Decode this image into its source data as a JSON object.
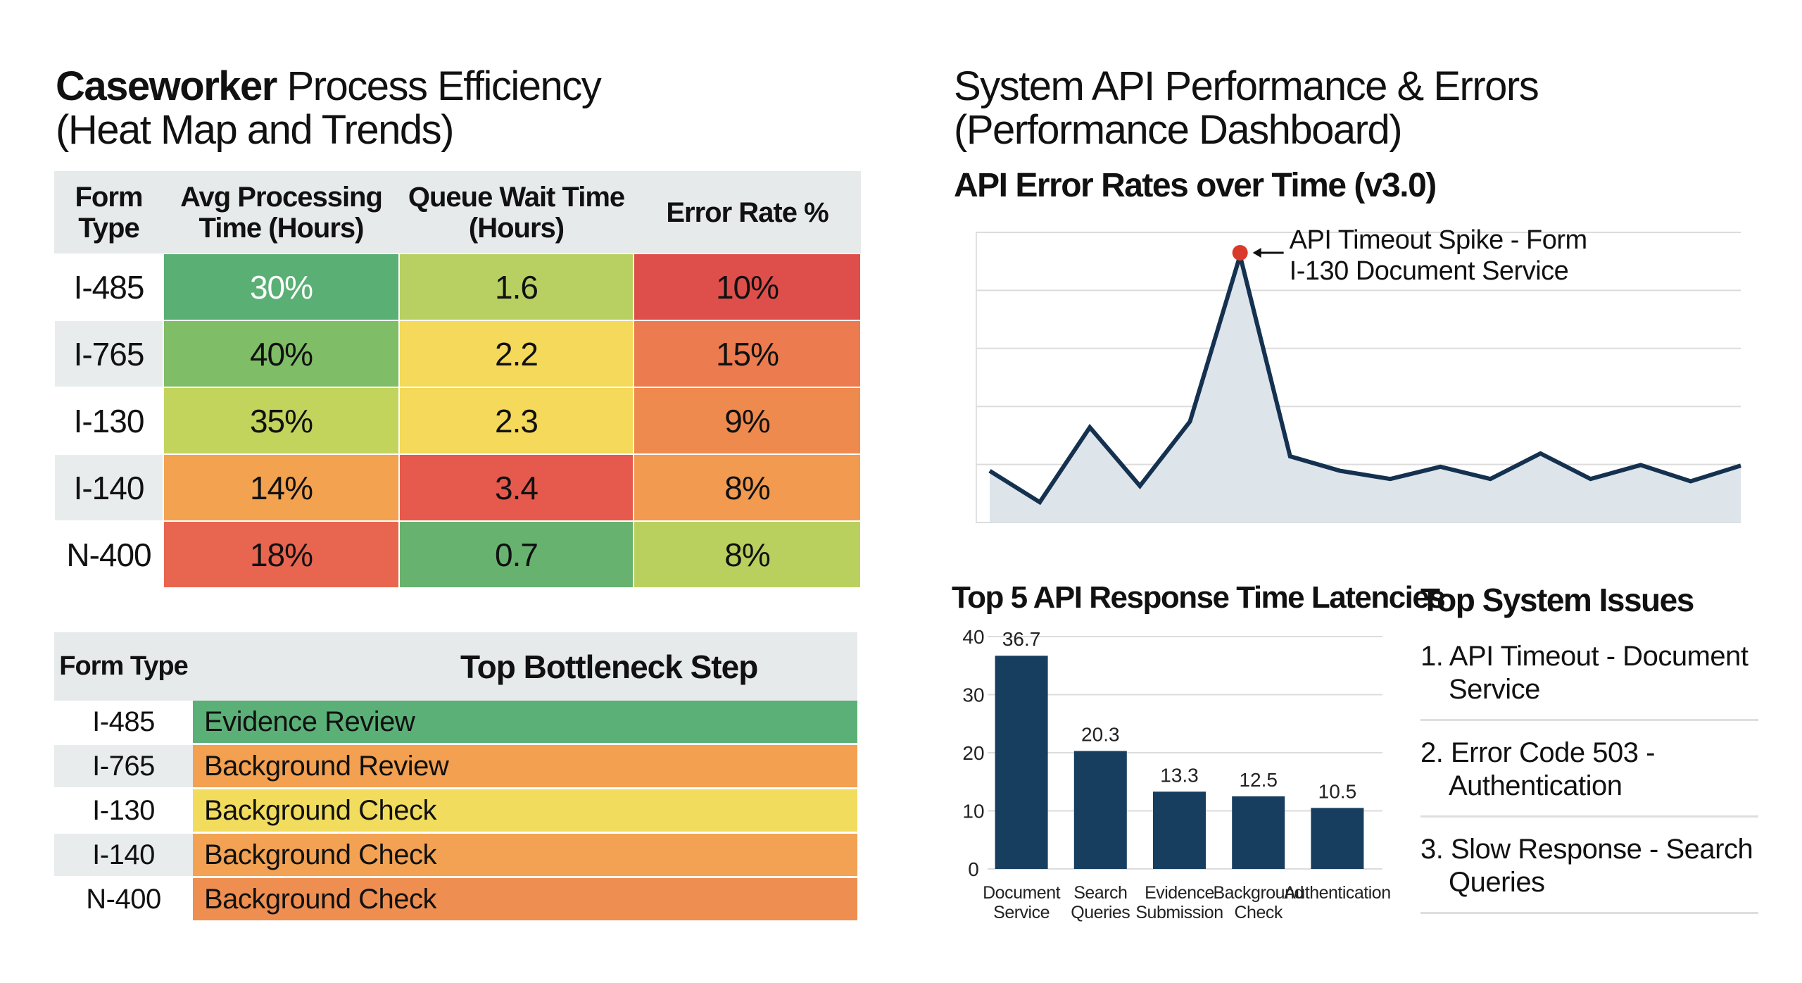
{
  "left": {
    "title_bold": "Caseworker",
    "title_rest": "Process Efficiency",
    "title_line2": "(Heat Map and Trends)",
    "heatmap": {
      "headers": [
        "Form Type",
        "Avg Processing Time (Hours)",
        "Queue Wait Time (Hours)",
        "Error Rate %"
      ],
      "rows": [
        {
          "form": "I-485",
          "cells": [
            {
              "v": "30%",
              "color": "#5aaf74",
              "text": "#ffffff"
            },
            {
              "v": "1.6",
              "color": "#b8d062"
            },
            {
              "v": "10%",
              "color": "#de4f4b"
            }
          ]
        },
        {
          "form": "I-765",
          "cells": [
            {
              "v": "40%",
              "color": "#7fbd66"
            },
            {
              "v": "2.2",
              "color": "#f4d95a"
            },
            {
              "v": "15%",
              "color": "#ec7b50"
            }
          ]
        },
        {
          "form": "I-130",
          "cells": [
            {
              "v": "35%",
              "color": "#c2d45c"
            },
            {
              "v": "2.3",
              "color": "#f4d95a"
            },
            {
              "v": "9%",
              "color": "#ef8a4e"
            }
          ]
        },
        {
          "form": "I-140",
          "cells": [
            {
              "v": "14%",
              "color": "#f3a24f"
            },
            {
              "v": "3.4",
              "color": "#e65a4d"
            },
            {
              "v": "8%",
              "color": "#f19a50"
            }
          ]
        },
        {
          "form": "N-400",
          "cells": [
            {
              "v": "18%",
              "color": "#e8654f"
            },
            {
              "v": "0.7",
              "color": "#67b26f"
            },
            {
              "v": "8%",
              "color": "#b9d05e"
            }
          ]
        }
      ]
    },
    "bottleneck": {
      "headers": [
        "Form Type",
        "Top Bottleneck Step"
      ],
      "rows": [
        {
          "form": "I-485",
          "step": "Evidence Review",
          "color": "#5bb077"
        },
        {
          "form": "I-765",
          "step": "Background Review",
          "color": "#f3a050"
        },
        {
          "form": "I-130",
          "step": "Background Check",
          "color": "#f2dc5d"
        },
        {
          "form": "I-140",
          "step": "Background Check",
          "color": "#f2a252"
        },
        {
          "form": "N-400",
          "step": "Background Check",
          "color": "#ee8e50"
        }
      ]
    }
  },
  "right": {
    "title_line1": "System API Performance & Errors",
    "title_line2": "(Performance Dashboard)",
    "issues_title": "Top System Issues",
    "issues": [
      "1. API Timeout - Document Service",
      "2. Error Code 503 - Authentication",
      "3. Slow Response - Search Queries"
    ]
  },
  "chart_data": [
    {
      "type": "area",
      "title": "API Error Rates over Time (v3.0)",
      "xlabel": "",
      "ylabel": "",
      "ylim": [
        0,
        5
      ],
      "grid": true,
      "y": [
        0.89,
        0.35,
        1.64,
        0.63,
        1.74,
        4.6,
        1.14,
        0.89,
        0.75,
        0.96,
        0.75,
        1.19,
        0.75,
        0.99,
        0.71,
        0.98
      ],
      "annotation": {
        "index": 5,
        "text_line1": "API Timeout Spike - Form",
        "text_line2": "I-130 Document Service",
        "marker_color": "#d93a2b"
      },
      "line_color": "#14314f",
      "fill_color": "#dde4ea"
    },
    {
      "type": "bar",
      "title": "Top 5 API Response Time Latencies",
      "categories": [
        [
          "Document",
          "Service"
        ],
        [
          "Search",
          "Queries"
        ],
        [
          "Evidence",
          "Submission"
        ],
        [
          "Background",
          "Check"
        ],
        [
          "Authentication"
        ]
      ],
      "values": [
        36.7,
        20.3,
        13.3,
        12.5,
        10.5
      ],
      "value_labels": [
        "36.7",
        "20.3",
        "13.3",
        "12.5",
        "10.5"
      ],
      "yticks": [
        "0",
        "10",
        "20",
        "30",
        "40"
      ],
      "ylim": [
        0,
        40
      ],
      "grid": true,
      "bar_color": "#173e5f"
    }
  ]
}
